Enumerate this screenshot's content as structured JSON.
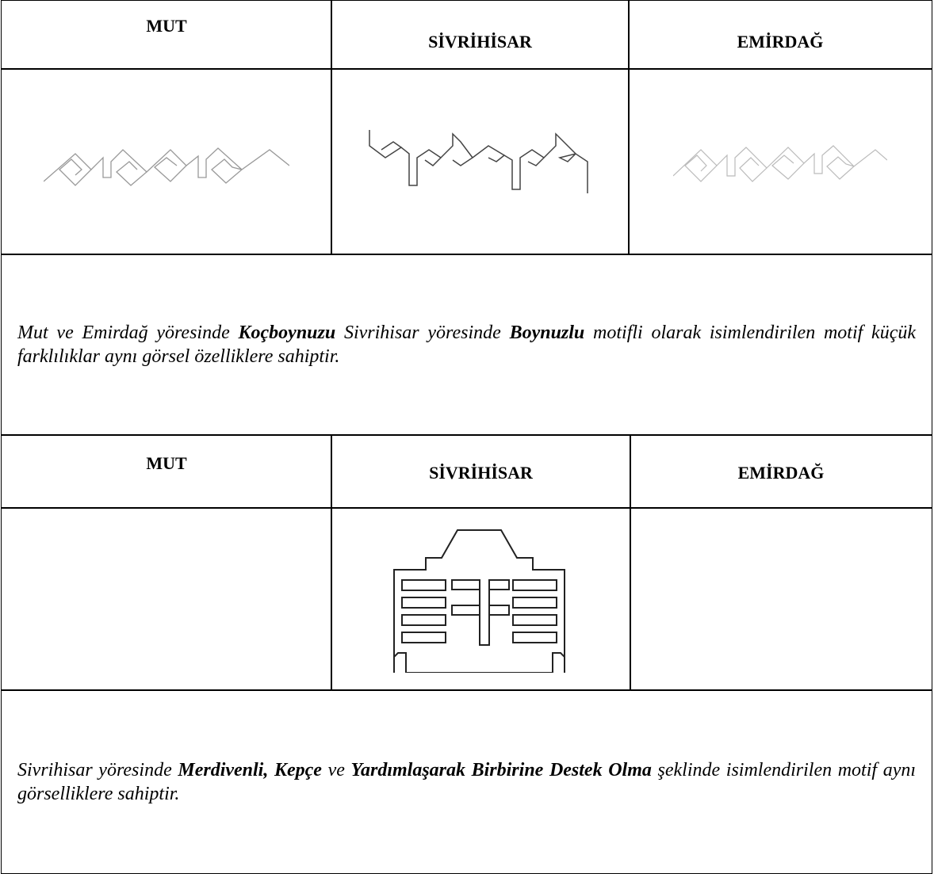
{
  "sections": [
    {
      "headers": [
        "MUT",
        "SİVRİHİSAR",
        "EMİRDAĞ"
      ],
      "note": [
        {
          "text": "Mut ve Emirdağ yöresinde ",
          "bold": false
        },
        {
          "text": "Koçboynuzu",
          "bold": true
        },
        {
          "text": " Sivrihisar yöresinde ",
          "bold": false
        },
        {
          "text": "Boynuzlu",
          "bold": true
        },
        {
          "text": " motifli olarak isimlendirilen motif küçük farklılıklar aynı görsel özelliklere sahiptir.",
          "bold": false
        }
      ]
    },
    {
      "headers": [
        "MUT",
        "SİVRİHİSAR",
        "EMİRDAĞ"
      ],
      "note": [
        {
          "text": "Sivrihisar yöresinde ",
          "bold": false
        },
        {
          "text": "Merdivenli, Kepçe",
          "bold": true
        },
        {
          "text": " ve ",
          "bold": false
        },
        {
          "text": "Yardımlaşarak Birbirine Destek Olma",
          "bold": true
        },
        {
          "text": " şeklinde isimlendirilen motif aynı görselliklere sahiptir.",
          "bold": false
        }
      ]
    }
  ]
}
